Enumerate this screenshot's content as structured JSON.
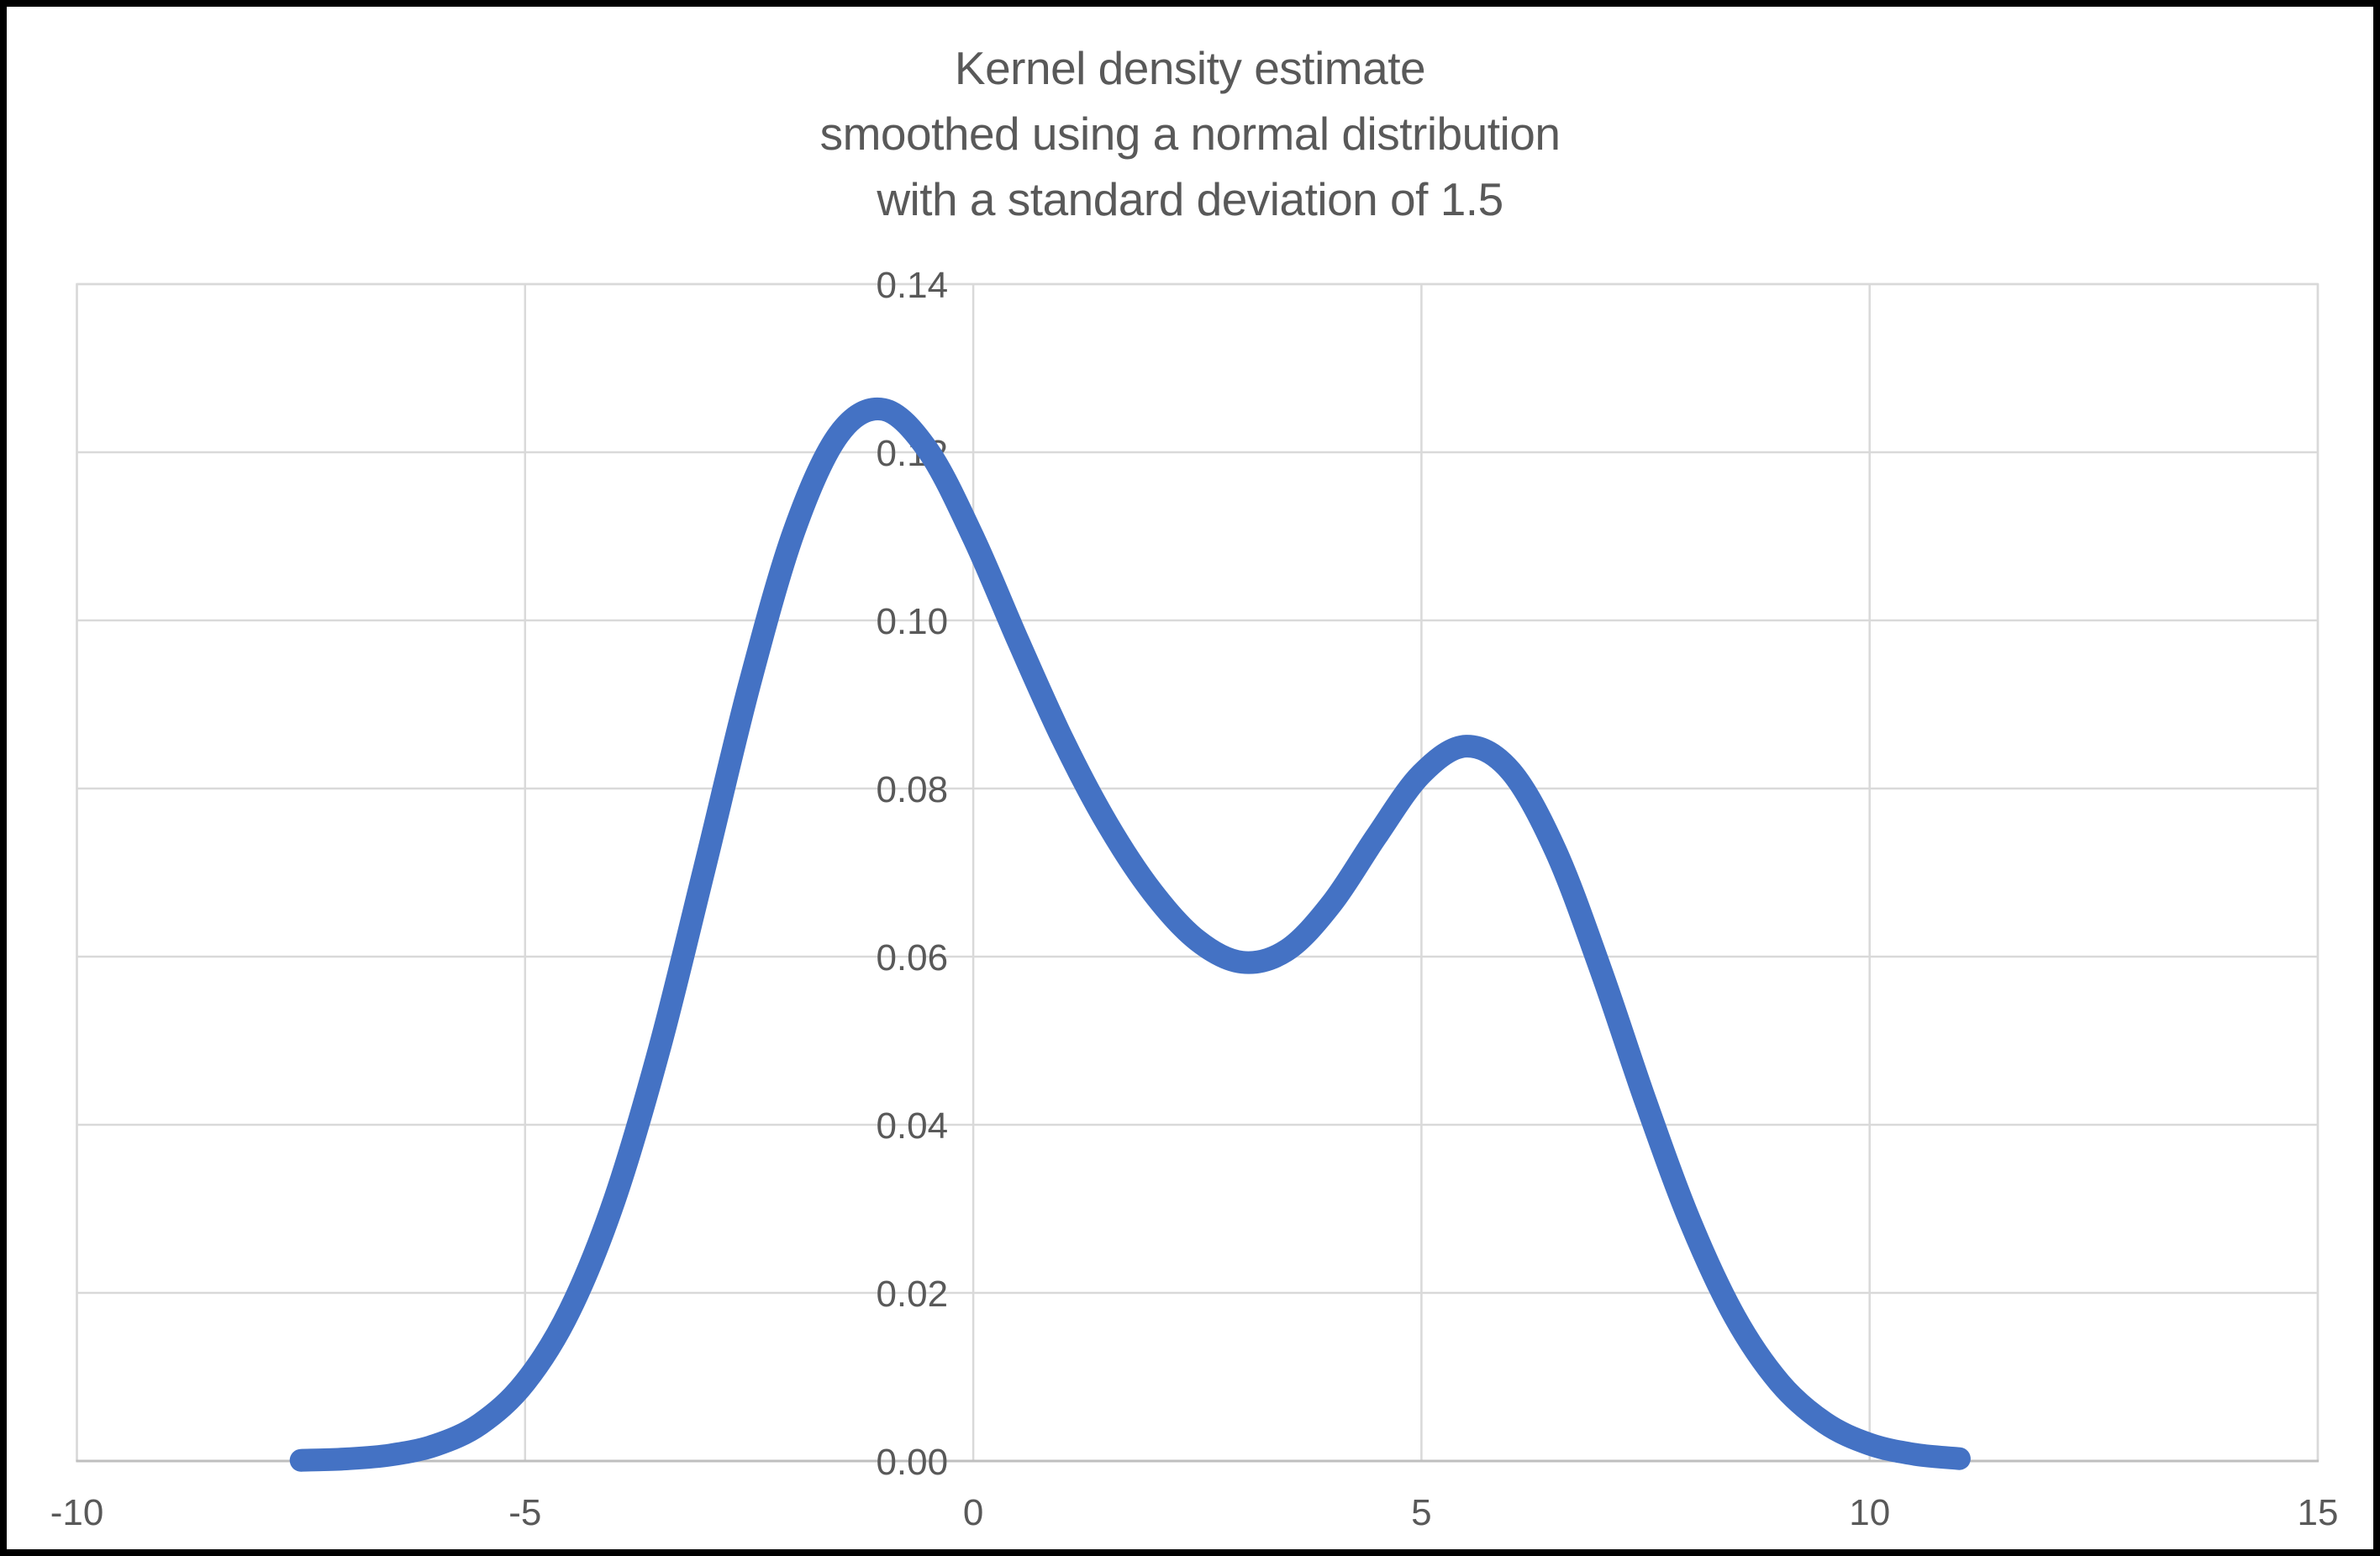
{
  "page": {
    "background": "#ffffff",
    "frame_color": "#000000"
  },
  "chart_data": {
    "type": "line",
    "title_lines": [
      "Kernel density estimate",
      "smoothed using a normal distribution",
      "with a standard deviation of 1.5"
    ],
    "title_color": "#595959",
    "legend": "none",
    "grid": true,
    "line_color": "#4472C4",
    "line_width": 27,
    "grid_color": "#D9D9D9",
    "axis_line_color": "#BFBFBF",
    "tick_label_color": "#595959",
    "tick_font_size": 44,
    "x_axis": {
      "min": -10,
      "max": 15,
      "ticks": [
        {
          "value": -10,
          "label": "-10"
        },
        {
          "value": -5,
          "label": "-5"
        },
        {
          "value": 0,
          "label": "0"
        },
        {
          "value": 5,
          "label": "5"
        },
        {
          "value": 10,
          "label": "10"
        },
        {
          "value": 15,
          "label": "15"
        }
      ]
    },
    "y_axis": {
      "min": 0,
      "max": 0.14,
      "ticks": [
        {
          "value": 0.0,
          "label": "0.00"
        },
        {
          "value": 0.02,
          "label": "0.02"
        },
        {
          "value": 0.04,
          "label": "0.04"
        },
        {
          "value": 0.06,
          "label": "0.06"
        },
        {
          "value": 0.08,
          "label": "0.08"
        },
        {
          "value": 0.1,
          "label": "0.10"
        },
        {
          "value": 0.12,
          "label": "0.12"
        },
        {
          "value": 0.14,
          "label": "0.14"
        }
      ]
    },
    "series": [
      {
        "name": "Kernel density estimate",
        "x": [
          -7.5,
          -7,
          -6.5,
          -6,
          -5.5,
          -5,
          -4.5,
          -4,
          -3.5,
          -3,
          -2.5,
          -2,
          -1.5,
          -1,
          -0.5,
          0,
          0.5,
          1,
          1.5,
          2,
          2.5,
          3,
          3.5,
          4,
          4.5,
          5,
          5.5,
          6,
          6.5,
          7,
          7.5,
          8,
          8.5,
          9,
          9.5,
          10,
          10.5,
          11
        ],
        "y": [
          8e-05,
          0.00025,
          0.00072,
          0.00188,
          0.00441,
          0.00936,
          0.01794,
          0.03115,
          0.0491,
          0.07043,
          0.0922,
          0.11059,
          0.12213,
          0.12509,
          0.12014,
          0.10988,
          0.09758,
          0.08579,
          0.07572,
          0.06767,
          0.06193,
          0.05933,
          0.06078,
          0.06633,
          0.07435,
          0.08173,
          0.08504,
          0.08202,
          0.07253,
          0.05846,
          0.04282,
          0.02843,
          0.01708,
          0.00927,
          0.00454,
          0.002,
          0.0008,
          0.00028
        ]
      }
    ]
  }
}
